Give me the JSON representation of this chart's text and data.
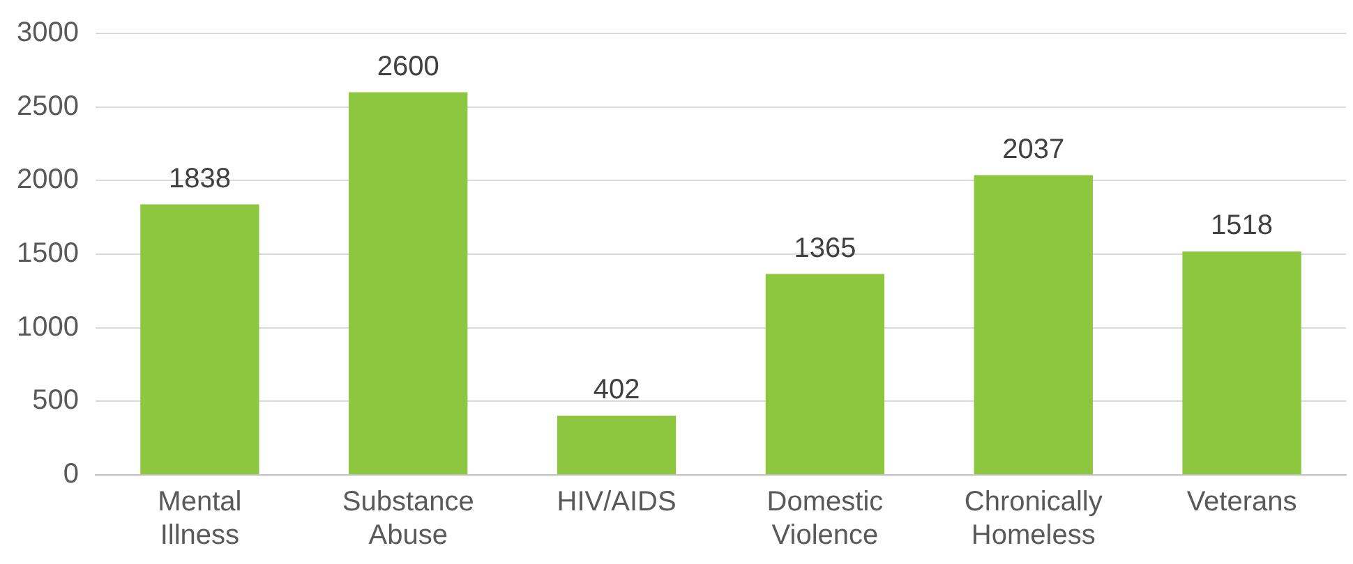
{
  "chart_data": {
    "type": "bar",
    "categories": [
      "Mental Illness",
      "Substance Abuse",
      "HIV/AIDS",
      "Domestic Violence",
      "Chronically Homeless",
      "Veterans"
    ],
    "values": [
      1838,
      2600,
      402,
      1365,
      2037,
      1518
    ],
    "color": "#8dc63f",
    "ylim": [
      0,
      3000
    ],
    "yticks": [
      0,
      500,
      1000,
      1500,
      2000,
      2500,
      3000
    ],
    "grid": "y",
    "legend": false,
    "data_labels": true
  }
}
